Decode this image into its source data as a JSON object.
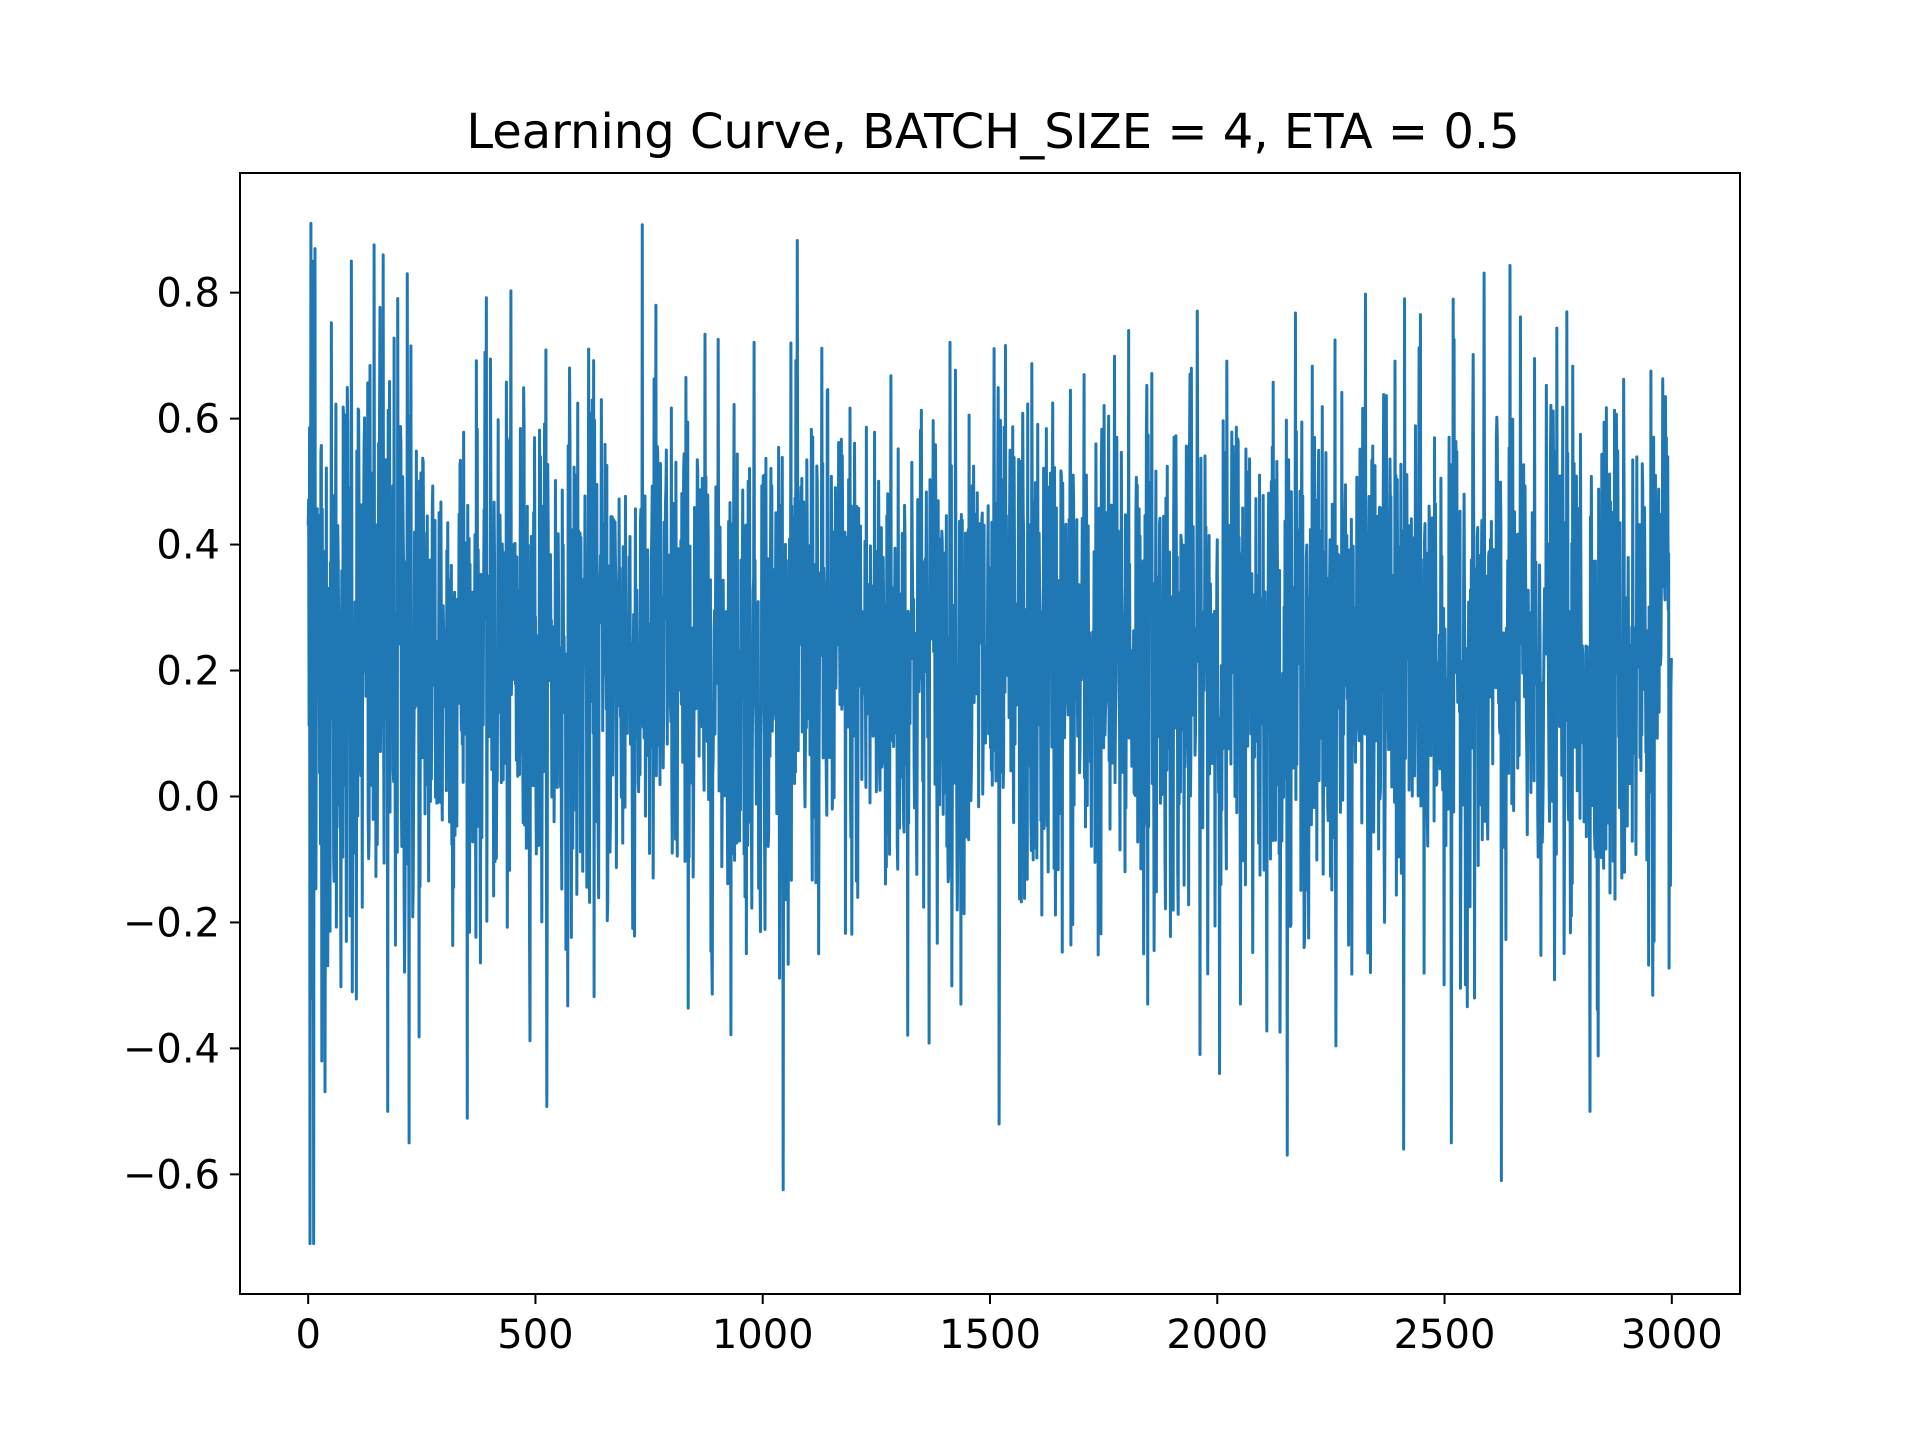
{
  "chart_data": {
    "type": "line",
    "title": "Learning Curve, BATCH_SIZE = 4, ETA = 0.5",
    "xlabel": "",
    "ylabel": "",
    "xlim": [
      -150,
      3150
    ],
    "ylim": [
      -0.79,
      0.99
    ],
    "grid": false,
    "legend": "none",
    "line_color": "#1f77b4",
    "x_ticks": [
      {
        "value": 0,
        "label": "0"
      },
      {
        "value": 500,
        "label": "500"
      },
      {
        "value": 1000,
        "label": "1000"
      },
      {
        "value": 1500,
        "label": "1500"
      },
      {
        "value": 2000,
        "label": "2000"
      },
      {
        "value": 2500,
        "label": "2500"
      },
      {
        "value": 3000,
        "label": "3000"
      }
    ],
    "y_ticks": [
      {
        "value": -0.6,
        "label": "−0.6"
      },
      {
        "value": -0.4,
        "label": "−0.4"
      },
      {
        "value": -0.2,
        "label": "−0.2"
      },
      {
        "value": 0.0,
        "label": "0.0"
      },
      {
        "value": 0.2,
        "label": "0.2"
      },
      {
        "value": 0.4,
        "label": "0.4"
      },
      {
        "value": 0.6,
        "label": "0.6"
      },
      {
        "value": 0.8,
        "label": "0.8"
      }
    ],
    "series": [
      {
        "n_points": 3000,
        "x_start": 0,
        "x_step": 1,
        "approx_mean": 0.22,
        "approx_std": 0.21,
        "min": -0.71,
        "max": 0.91,
        "notable_points": [
          {
            "x": 0,
            "y": 0.43
          },
          {
            "x": 4,
            "y": -0.71
          },
          {
            "x": 6,
            "y": 0.91
          },
          {
            "x": 9,
            "y": 0.85
          },
          {
            "x": 12,
            "y": -0.71
          },
          {
            "x": 15,
            "y": 0.87
          },
          {
            "x": 30,
            "y": -0.42
          },
          {
            "x": 95,
            "y": 0.85
          },
          {
            "x": 165,
            "y": 0.86
          },
          {
            "x": 175,
            "y": -0.5
          },
          {
            "x": 218,
            "y": 0.83
          },
          {
            "x": 222,
            "y": -0.55
          },
          {
            "x": 765,
            "y": 0.78
          },
          {
            "x": 1520,
            "y": -0.52
          },
          {
            "x": 1805,
            "y": 0.74
          },
          {
            "x": 2410,
            "y": -0.56
          },
          {
            "x": 2515,
            "y": -0.55
          },
          {
            "x": 2625,
            "y": -0.61
          },
          {
            "x": 2820,
            "y": -0.5
          },
          {
            "x": 3000,
            "y": 0.22
          }
        ]
      }
    ]
  }
}
